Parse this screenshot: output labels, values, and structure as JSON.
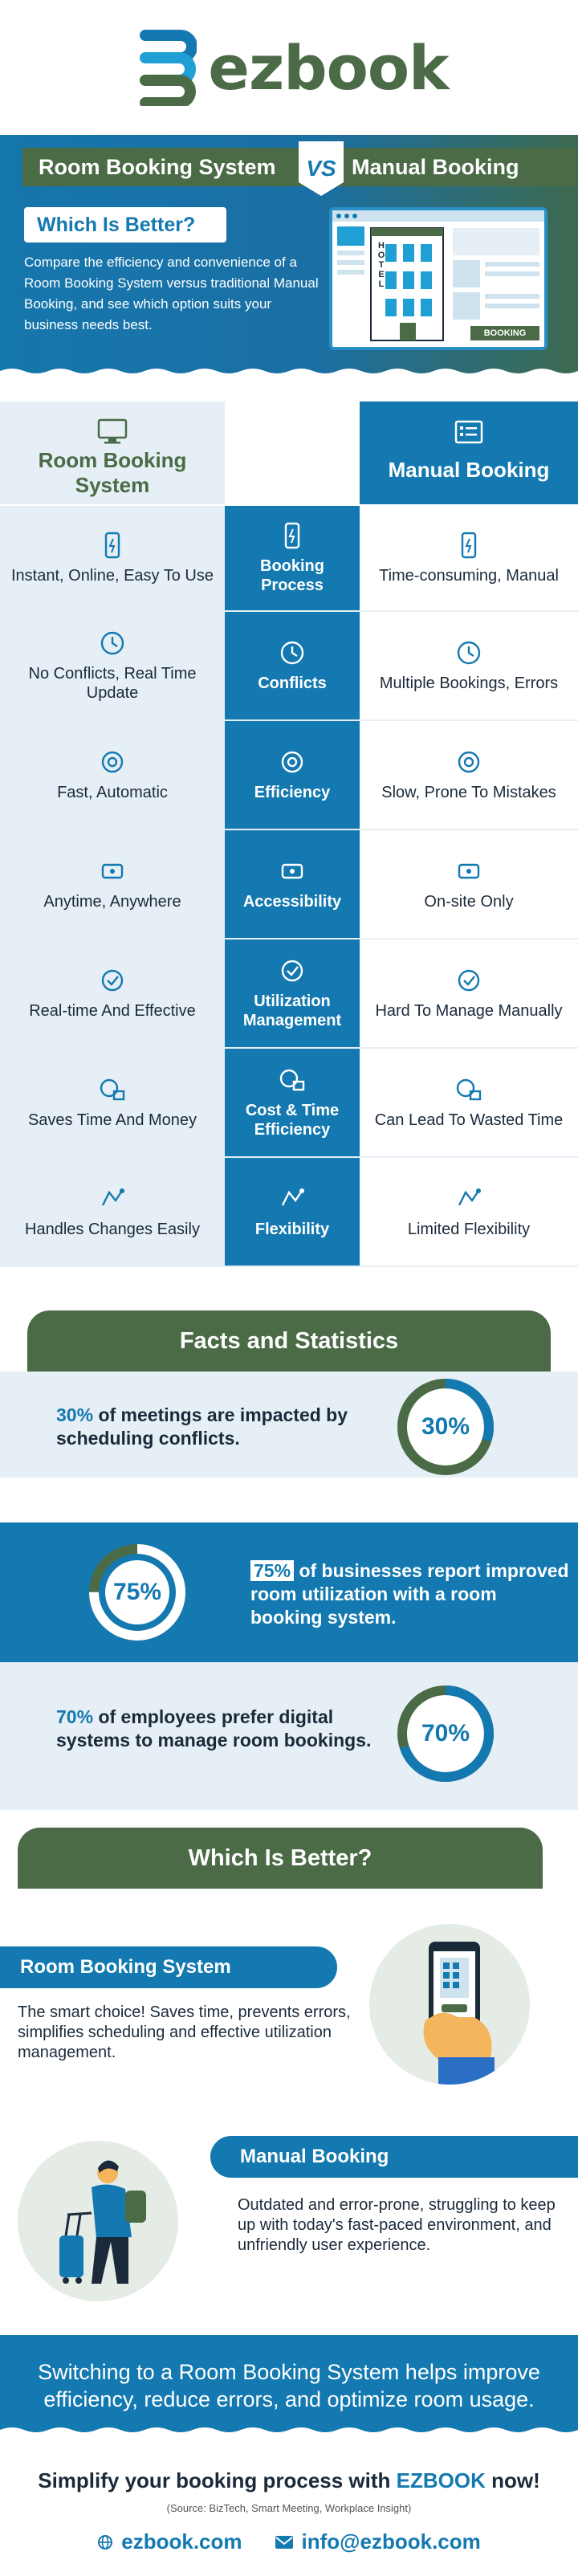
{
  "brand": {
    "name": "ezbook"
  },
  "hero": {
    "left_title": "Room Booking System",
    "vs": "VS",
    "right_title": "Manual Booking",
    "question": "Which Is Better?",
    "description": "Compare the efficiency and convenience of a Room Booking System versus traditional Manual Booking, and see which option suits your business needs best.",
    "card_hotel": "HOTEL",
    "card_booking": "BOOKING"
  },
  "compare": {
    "left_header": "Room Booking System",
    "right_header": "Manual Booking",
    "rows": [
      {
        "left": "Instant, Online, Easy To Use",
        "mid": "Booking Process",
        "right": "Time-consuming, Manual"
      },
      {
        "left": "No Conflicts, Real Time Update",
        "mid": "Conflicts",
        "right": "Multiple Bookings, Errors"
      },
      {
        "left": "Fast, Automatic",
        "mid": "Efficiency",
        "right": "Slow, Prone To Mistakes"
      },
      {
        "left": "Anytime, Anywhere",
        "mid": "Accessibility",
        "right": "On-site Only"
      },
      {
        "left": "Real-time And Effective",
        "mid": "Utilization Management",
        "right": "Hard To Manage Manually"
      },
      {
        "left": "Saves Time And Money",
        "mid": "Cost & Time Efficiency",
        "right": "Can Lead To Wasted Time"
      },
      {
        "left": "Handles Changes Easily",
        "mid": "Flexibility",
        "right": "Limited Flexibility"
      }
    ]
  },
  "facts": {
    "heading": "Facts and Statistics",
    "items": [
      {
        "pct": "30%",
        "text": "of meetings are impacted by scheduling conflicts.",
        "value": 0.3
      },
      {
        "pct": "75%",
        "text": "of businesses report improved room utilization with a room booking system.",
        "value": 0.75
      },
      {
        "pct": "70%",
        "text": "of employees prefer digital systems to manage room bookings.",
        "value": 0.7
      }
    ]
  },
  "which": {
    "heading": "Which Is Better?",
    "rbs_label": "Room Booking System",
    "rbs_text": "The smart choice! Saves time, prevents errors, simplifies scheduling and effective utilization management.",
    "manual_label": "Manual Booking",
    "manual_text": "Outdated and error-prone, struggling to keep up with today's fast-paced environment, and unfriendly user experience."
  },
  "conclusion": "Switching to a Room Booking System helps improve efficiency, reduce errors, and optimize room usage.",
  "cta": {
    "prefix": "Simplify your booking process with ",
    "brand": "EZBOOK",
    "suffix": " now!"
  },
  "source": "(Source: BizTech, Smart Meeting, Workplace Insight)",
  "contacts": {
    "website": "ezbook.com",
    "email": "info@ezbook.com"
  },
  "colors": {
    "blue": "#1479b0",
    "green": "#4a6b46",
    "light": "#e6eff5"
  }
}
